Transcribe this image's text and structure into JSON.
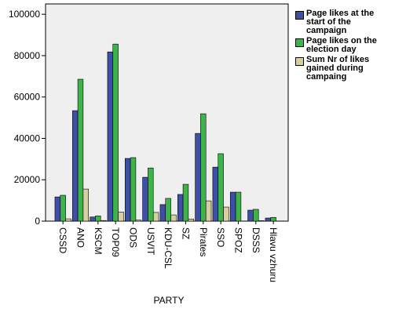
{
  "chart_data": {
    "type": "bar",
    "x_label": "PARTY",
    "categories": [
      "CSSD",
      "ANO",
      "KSCM",
      "TOP09",
      "ODS",
      "USVIT",
      "KDU-CSL",
      "SZ",
      "Pirates",
      "SSO",
      "SPOZ",
      "DSSS",
      "Hlavu vzhuru"
    ],
    "series": [
      {
        "name": "Page likes at the start of the campaign",
        "color": "#3d4fa6",
        "values": [
          11700,
          53400,
          2000,
          81800,
          30300,
          21200,
          8000,
          12900,
          42400,
          26100,
          14000,
          5300,
          1500
        ]
      },
      {
        "name": "Page likes on the election day",
        "color": "#3cb44a",
        "values": [
          12500,
          68600,
          2500,
          85600,
          30700,
          25700,
          11000,
          17800,
          51900,
          32600,
          14000,
          5700,
          1800
        ]
      },
      {
        "name": "Sum Nr of likes gained during campaing",
        "color": "#d6cfa0",
        "values": [
          1100,
          15500,
          300,
          4400,
          500,
          4200,
          3000,
          1000,
          9800,
          6800,
          0,
          200,
          0
        ]
      }
    ],
    "ylim": [
      0,
      105000
    ],
    "yticks": [
      0,
      20000,
      40000,
      60000,
      80000,
      100000
    ],
    "grid": false
  }
}
